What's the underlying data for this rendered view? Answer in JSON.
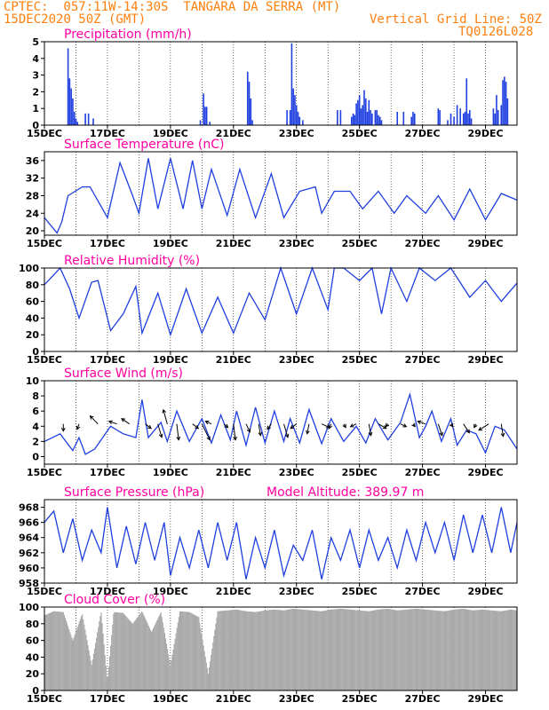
{
  "header": {
    "line1": "CPTEC:  057:11W-14:30S  TANGARA DA SERRA (MT)",
    "line2": "15DEC2020 50Z (GMT)",
    "grid_note": "Vertical Grid Line: 50Z",
    "code": "TQ0126L028"
  },
  "colors": {
    "header": "#ff7f0e",
    "title": "#ff00a0",
    "series": "#1f3fe0",
    "cloud": "#aaaaaa",
    "arrows": "#000000"
  },
  "chart_data": [
    {
      "type": "bar",
      "title": "Precipitation (mm/h)",
      "ylim": [
        0,
        5
      ],
      "yticks": [
        0,
        1,
        2,
        3,
        4,
        5
      ],
      "xticks": [
        "15DEC",
        "17DEC",
        "19DEC",
        "21DEC",
        "23DEC",
        "25DEC",
        "27DEC",
        "29DEC"
      ],
      "x_is_days_from_15dec": true,
      "x": [
        0.75,
        0.8,
        0.85,
        0.9,
        0.95,
        1.0,
        1.05,
        1.3,
        1.4,
        1.55,
        4.95,
        5.05,
        5.1,
        5.15,
        5.25,
        6.45,
        6.5,
        6.55,
        6.6,
        7.7,
        7.8,
        7.85,
        7.9,
        7.95,
        8.0,
        8.05,
        8.1,
        8.2,
        9.3,
        9.4,
        9.75,
        9.8,
        9.85,
        9.9,
        9.95,
        10.0,
        10.05,
        10.1,
        10.15,
        10.2,
        10.25,
        10.3,
        10.35,
        10.4,
        10.5,
        10.55,
        10.6,
        10.65,
        10.7,
        11.2,
        11.4,
        11.65,
        11.7,
        11.75,
        12.5,
        12.55,
        12.8,
        12.9,
        13.0,
        13.1,
        13.2,
        13.3,
        13.35,
        13.4,
        13.45,
        13.5,
        13.55,
        14.25,
        14.3,
        14.35,
        14.4,
        14.5,
        14.55,
        14.6,
        14.65,
        14.7
      ],
      "values": [
        4.6,
        2.8,
        2.2,
        1.6,
        0.8,
        0.4,
        0.2,
        0.7,
        0.7,
        0.4,
        0.3,
        1.9,
        1.1,
        1.1,
        0.2,
        3.2,
        2.6,
        1.6,
        0.3,
        0.9,
        0.9,
        4.9,
        2.2,
        1.8,
        1.2,
        0.8,
        0.5,
        0.3,
        0.9,
        0.9,
        0.5,
        0.7,
        0.6,
        1.3,
        1.5,
        1.8,
        1.0,
        1.2,
        2.1,
        1.6,
        0.8,
        1.5,
        0.9,
        0.7,
        0.9,
        0.9,
        0.6,
        0.5,
        0.3,
        0.8,
        0.8,
        0.5,
        0.8,
        0.7,
        1.0,
        0.9,
        0.3,
        0.7,
        0.5,
        1.2,
        1.0,
        0.7,
        0.8,
        2.8,
        0.7,
        0.9,
        0.4,
        1.0,
        0.7,
        1.8,
        0.9,
        1.2,
        2.7,
        2.9,
        2.6,
        1.6
      ]
    },
    {
      "type": "line",
      "title": "Surface Temperature (nC)",
      "ylim": [
        19,
        38
      ],
      "yticks": [
        20,
        24,
        28,
        32,
        36
      ],
      "xticks": [
        "15DEC",
        "17DEC",
        "19DEC",
        "21DEC",
        "23DEC",
        "25DEC",
        "27DEC",
        "29DEC"
      ],
      "x_is_days_from_15dec": true,
      "x": [
        0,
        0.4,
        0.55,
        0.75,
        1.2,
        1.45,
        2.0,
        2.4,
        2.8,
        3.0,
        3.3,
        3.6,
        4.0,
        4.4,
        4.7,
        5.0,
        5.3,
        5.8,
        6.2,
        6.7,
        7.2,
        7.6,
        8.1,
        8.6,
        8.8,
        9.2,
        9.7,
        10.1,
        10.6,
        11.1,
        11.5,
        12.1,
        12.5,
        13.0,
        13.5,
        14.0,
        14.5,
        15.0
      ],
      "values": [
        23,
        19.5,
        22,
        28,
        30,
        30,
        23,
        35.5,
        28,
        24,
        36.5,
        25,
        36.5,
        25,
        36,
        25,
        34,
        23.5,
        34,
        23,
        33,
        23,
        29,
        30,
        24,
        29,
        29,
        25,
        29,
        24,
        28,
        24,
        28,
        22.5,
        29.5,
        22.5,
        28.5,
        27
      ]
    },
    {
      "type": "line",
      "title": "Relative Humidity (%)",
      "ylim": [
        0,
        100
      ],
      "yticks": [
        0,
        20,
        40,
        60,
        80,
        100
      ],
      "xticks": [
        "15DEC",
        "17DEC",
        "19DEC",
        "21DEC",
        "23DEC",
        "25DEC",
        "27DEC",
        "29DEC"
      ],
      "x_is_days_from_15dec": true,
      "x": [
        0,
        0.5,
        0.8,
        1.1,
        1.5,
        1.7,
        2.1,
        2.5,
        2.9,
        3.1,
        3.6,
        4.0,
        4.5,
        5.0,
        5.5,
        6.0,
        6.5,
        7.0,
        7.5,
        8.0,
        8.5,
        9.0,
        9.2,
        9.5,
        10.0,
        10.4,
        10.7,
        11.0,
        11.5,
        11.9,
        12.4,
        12.9,
        13.5,
        14.0,
        14.5,
        15.0
      ],
      "values": [
        80,
        100,
        75,
        40,
        83,
        85,
        25,
        45,
        78,
        22,
        70,
        20,
        75,
        22,
        65,
        22,
        70,
        38,
        100,
        45,
        100,
        50,
        100,
        100,
        85,
        100,
        45,
        100,
        60,
        100,
        85,
        100,
        65,
        85,
        60,
        82
      ]
    },
    {
      "type": "line",
      "title": "Surface Wind (m/s)",
      "ylim": [
        -1,
        10
      ],
      "yticks": [
        0,
        2,
        4,
        6,
        8,
        10
      ],
      "xticks": [
        "15DEC",
        "17DEC",
        "19DEC",
        "21DEC",
        "23DEC",
        "25DEC",
        "27DEC",
        "29DEC"
      ],
      "x_is_days_from_15dec": true,
      "x": [
        0,
        0.5,
        0.9,
        1.1,
        1.3,
        1.6,
        2.1,
        2.5,
        2.9,
        3.1,
        3.3,
        3.7,
        3.9,
        4.2,
        4.6,
        5.0,
        5.3,
        5.6,
        5.9,
        6.1,
        6.4,
        6.7,
        7.0,
        7.3,
        7.6,
        7.8,
        8.1,
        8.4,
        8.8,
        9.1,
        9.5,
        9.9,
        10.2,
        10.5,
        10.9,
        11.3,
        11.6,
        11.9,
        12.1,
        12.3,
        12.6,
        12.9,
        13.1,
        13.4,
        13.7,
        14.0,
        14.3,
        14.6,
        15.0
      ],
      "values": [
        2,
        3,
        0.8,
        2.5,
        0.3,
        1,
        4,
        3,
        2.5,
        7.5,
        2.5,
        4.5,
        2,
        6,
        2,
        5,
        1.8,
        5.5,
        2.2,
        6,
        1.5,
        6.5,
        1.8,
        6,
        2,
        5,
        1.8,
        6.2,
        1.7,
        5,
        2,
        4,
        1.8,
        5,
        2.2,
        4.5,
        8.2,
        2.5,
        4,
        6,
        2,
        5,
        1.5,
        3.5,
        3,
        0.5,
        4,
        3.5,
        1
      ]
    },
    {
      "type": "line",
      "title": "Surface Pressure (hPa)",
      "annotation": "Model Altitude: 389.97  m",
      "ylim": [
        958,
        969
      ],
      "yticks": [
        958,
        960,
        962,
        964,
        966,
        968
      ],
      "xticks": [
        "15DEC",
        "17DEC",
        "19DEC",
        "21DEC",
        "23DEC",
        "25DEC",
        "27DEC",
        "29DEC"
      ],
      "x_is_days_from_15dec": true,
      "x": [
        0,
        0.3,
        0.6,
        0.9,
        1.2,
        1.5,
        1.8,
        2.0,
        2.3,
        2.6,
        2.9,
        3.2,
        3.5,
        3.8,
        4.0,
        4.3,
        4.6,
        4.9,
        5.2,
        5.5,
        5.8,
        6.1,
        6.4,
        6.7,
        7.0,
        7.3,
        7.6,
        7.9,
        8.2,
        8.5,
        8.8,
        9.1,
        9.4,
        9.7,
        10.0,
        10.3,
        10.6,
        10.9,
        11.2,
        11.5,
        11.8,
        12.1,
        12.4,
        12.7,
        13.0,
        13.3,
        13.6,
        13.9,
        14.2,
        14.5,
        14.8,
        15.0
      ],
      "values": [
        966,
        967.5,
        962,
        966.5,
        961,
        965,
        962,
        968,
        960,
        965.5,
        960.5,
        966,
        961,
        966,
        959,
        964,
        960,
        965,
        960,
        966,
        961,
        966,
        958.5,
        964,
        960,
        965,
        959,
        963,
        961,
        965,
        958.5,
        964,
        961,
        965,
        960,
        965,
        961,
        964,
        960,
        965,
        961,
        966,
        962,
        966,
        961,
        967,
        962,
        967,
        962,
        968,
        962,
        966
      ]
    },
    {
      "type": "area",
      "title": "Cloud Cover (%)",
      "ylim": [
        0,
        100
      ],
      "yticks": [
        0,
        20,
        40,
        60,
        80,
        100
      ],
      "xticks": [
        "15DEC",
        "17DEC",
        "19DEC",
        "21DEC",
        "23DEC",
        "25DEC",
        "27DEC",
        "29DEC"
      ],
      "x_is_days_from_15dec": true,
      "x": [
        0,
        0.3,
        0.6,
        0.9,
        1.2,
        1.5,
        1.8,
        2.0,
        2.2,
        2.5,
        2.8,
        3.1,
        3.4,
        3.7,
        4.0,
        4.3,
        4.6,
        4.9,
        5.2,
        5.5,
        5.8,
        6.1,
        6.4,
        6.7,
        7.0,
        7.3,
        7.6,
        7.9,
        8.2,
        8.5,
        8.8,
        9.1,
        9.4,
        9.7,
        10.0,
        10.3,
        10.6,
        10.9,
        11.2,
        11.5,
        11.8,
        12.1,
        12.4,
        12.7,
        13.0,
        13.3,
        13.6,
        13.9,
        14.2,
        14.5,
        14.8,
        15.0
      ],
      "values": [
        90,
        95,
        94,
        60,
        92,
        30,
        95,
        10,
        94,
        93,
        80,
        95,
        70,
        94,
        30,
        95,
        94,
        88,
        20,
        95,
        96,
        97,
        95,
        94,
        96,
        97,
        96,
        98,
        97,
        96,
        95,
        97,
        98,
        97,
        96,
        95,
        97,
        98,
        96,
        97,
        98,
        97,
        96,
        95,
        97,
        98,
        96,
        97,
        96,
        95,
        97,
        96
      ]
    }
  ],
  "wind_arrows": {
    "note": "direction vectors (dx, dy) in data units, anchored at days from 15DEC",
    "x": [
      0.6,
      1.1,
      1.7,
      2.3,
      2.7,
      3.2,
      3.6,
      3.9,
      4.2,
      4.7,
      5.0,
      5.3,
      5.7,
      6.0,
      6.4,
      6.8,
      7.2,
      7.6,
      8.0,
      8.4,
      8.8,
      9.1,
      9.5,
      9.9,
      10.3,
      10.6,
      10.9,
      11.3,
      11.7,
      12.1,
      12.5,
      12.9,
      13.3,
      13.7,
      14.1,
      14.5
    ],
    "dx": [
      0,
      -0.1,
      -0.4,
      -0.4,
      -0.4,
      0.3,
      0.2,
      -0.2,
      0.1,
      0.3,
      0.4,
      -0.3,
      0.2,
      0.1,
      0.2,
      0.1,
      -0.2,
      0.2,
      -0.3,
      -0.1,
      0.4,
      -0.1,
      0.1,
      -0.3,
      0.1,
      0.4,
      -0.1,
      0.3,
      0.1,
      -0.4,
      0.2,
      0.1,
      0.3,
      -0.1,
      -0.5,
      0.1
    ],
    "dy": [
      -0.8,
      -0.6,
      0.9,
      0.3,
      0.6,
      -0.5,
      -1.5,
      1.6,
      -1.8,
      -0.5,
      -1.8,
      0.3,
      -0.4,
      -1.8,
      -0.9,
      -1.3,
      -0.6,
      -1.5,
      -0.5,
      -1.1,
      -0.4,
      -0.5,
      -0.4,
      -0.3,
      -1.3,
      -0.5,
      -0.3,
      -0.3,
      -0.3,
      0.3,
      -1.3,
      -0.3,
      -1.0,
      -0.4,
      -0.7,
      -1.4
    ]
  }
}
